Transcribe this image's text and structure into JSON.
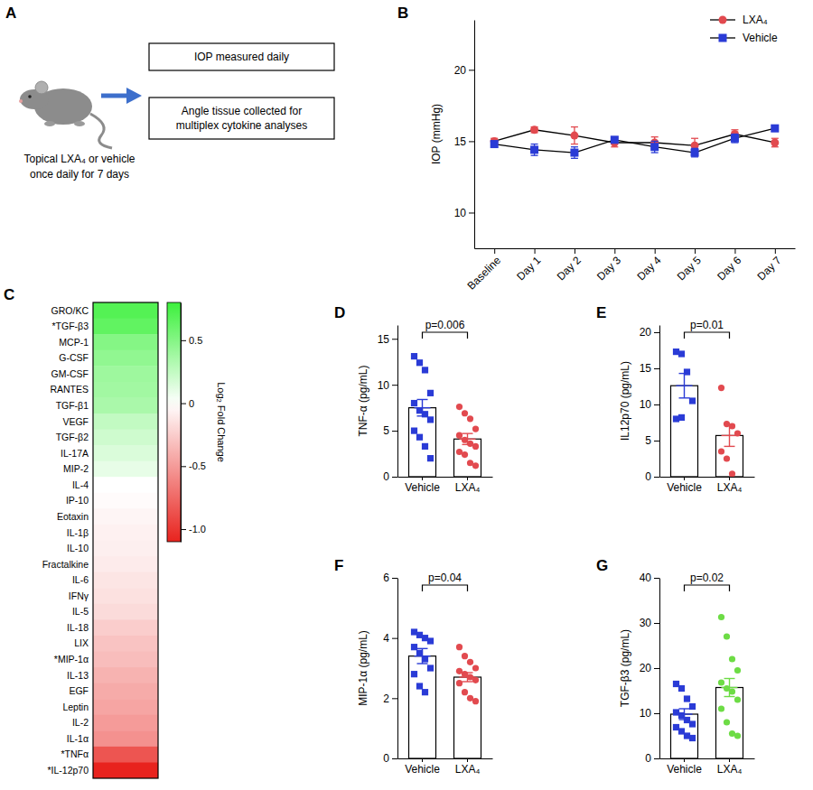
{
  "diagram": {
    "label": "A",
    "caption": [
      "Topical LXA₄ or vehicle",
      "once daily for 7 days"
    ],
    "boxes": [
      [
        "IOP measured daily"
      ],
      [
        "Angle tissue collected for",
        "multiplex cytokine analyses"
      ]
    ]
  },
  "chart_data": [
    {
      "label": "B",
      "type": "line",
      "y_label": "IOP (mmHg)",
      "categories": [
        "Baseline",
        "Day 1",
        "Day 2",
        "Day 3",
        "Day 4",
        "Day 5",
        "Day 6",
        "Day 7"
      ],
      "ylim": [
        7.5,
        23.5
      ],
      "yticks": [
        10,
        15,
        20
      ],
      "legend": "top-right",
      "series": [
        {
          "name": "LXA₄",
          "color": "#e24a4f",
          "marker": "circle",
          "values": [
            15.0,
            15.8,
            15.4,
            14.9,
            14.9,
            14.7,
            15.5,
            14.9
          ],
          "errors": [
            0.2,
            0.2,
            0.6,
            0.3,
            0.4,
            0.5,
            0.3,
            0.3
          ]
        },
        {
          "name": "Vehicle",
          "color": "#2a3bd6",
          "marker": "square",
          "values": [
            14.8,
            14.4,
            14.2,
            15.1,
            14.6,
            14.2,
            15.2,
            15.9
          ],
          "errors": [
            0.2,
            0.4,
            0.4,
            0.2,
            0.4,
            0.3,
            0.3,
            0.2
          ]
        }
      ]
    },
    {
      "label": "C",
      "type": "heatmap",
      "color_label": "Log₂ Fold Change",
      "categories": [
        "GRO/KC",
        "*TGF-β3",
        "MCP-1",
        "G-CSF",
        "GM-CSF",
        "RANTES",
        "TGF-β1",
        "VEGF",
        "TGF-β2",
        "IL-17A",
        "MIP-2",
        "IL-4",
        "IP-10",
        "Eotaxin",
        "IL-1β",
        "IL-10",
        "Fractalkine",
        "IL-6",
        "IFNγ",
        "IL-5",
        "IL-18",
        "LIX",
        "*MIP-1α",
        "IL-13",
        "EGF",
        "Leptin",
        "IL-2",
        "IL-1α",
        "*TNFα",
        "*IL-12p70"
      ],
      "values": [
        0.7,
        0.65,
        0.5,
        0.45,
        0.4,
        0.38,
        0.35,
        0.25,
        0.2,
        0.15,
        0.1,
        0.0,
        -0.02,
        -0.05,
        -0.07,
        -0.08,
        -0.1,
        -0.13,
        -0.15,
        -0.18,
        -0.25,
        -0.3,
        -0.33,
        -0.38,
        -0.42,
        -0.45,
        -0.5,
        -0.55,
        -0.85,
        -1.1
      ],
      "color_range": [
        -1.1,
        0.8
      ],
      "color_ticks": [
        0.5,
        0,
        -0.5,
        {
          "value": -1,
          "label": "-1.0"
        }
      ]
    },
    {
      "label": "D",
      "type": "bar",
      "y_label": "TNF-α (pg/mL)",
      "ylim": [
        0,
        16.5
      ],
      "yticks": [
        0,
        5,
        10,
        15
      ],
      "annotation": "p=0.006",
      "series": [
        {
          "name": "Vehicle",
          "color": "#2a3bd6",
          "marker": "square",
          "values": [
            7.5
          ],
          "errors": [
            0.9
          ],
          "points": [
            13.1,
            12.4,
            11.6,
            9.1,
            8.0,
            7.2,
            6.8,
            6.2,
            5.0,
            4.3,
            3.3,
            2.0
          ]
        },
        {
          "name": "LXA₄",
          "color": "#e24a4f",
          "marker": "circle",
          "values": [
            4.1
          ],
          "errors": [
            0.6
          ],
          "points": [
            7.6,
            6.9,
            6.3,
            5.2,
            4.5,
            4.0,
            3.6,
            3.3,
            2.7,
            2.4,
            1.5,
            1.2
          ]
        }
      ]
    },
    {
      "label": "E",
      "type": "bar",
      "y_label": "IL12p70 (pg/mL)",
      "ylim": [
        0,
        21
      ],
      "yticks": [
        0,
        5,
        10,
        15,
        20
      ],
      "annotation": "p=0.01",
      "series": [
        {
          "name": "Vehicle",
          "color": "#2a3bd6",
          "marker": "square",
          "values": [
            12.6
          ],
          "errors": [
            1.7
          ],
          "points": [
            17.3,
            17.0,
            14.5,
            10.5,
            8.0,
            8.2
          ]
        },
        {
          "name": "LXA₄",
          "color": "#e24a4f",
          "marker": "circle",
          "values": [
            5.7
          ],
          "errors": [
            1.5
          ],
          "points": [
            12.3,
            7.3,
            7.0,
            6.0,
            3.5,
            2.5,
            0.4
          ]
        }
      ]
    },
    {
      "label": "F",
      "type": "bar",
      "y_label": "MIP-1α (pg/mL)",
      "ylim": [
        0,
        6
      ],
      "yticks": [
        0,
        2,
        4,
        6
      ],
      "annotation": "p=0.04",
      "series": [
        {
          "name": "Vehicle",
          "color": "#2a3bd6",
          "marker": "square",
          "values": [
            3.4
          ],
          "errors": [
            0.25
          ],
          "points": [
            4.2,
            4.1,
            4.0,
            3.9,
            3.7,
            3.5,
            3.3,
            3.0,
            2.8,
            2.4,
            2.2
          ]
        },
        {
          "name": "LXA₄",
          "color": "#e24a4f",
          "marker": "circle",
          "values": [
            2.7
          ],
          "errors": [
            0.15
          ],
          "points": [
            3.7,
            3.4,
            3.2,
            3.0,
            2.9,
            2.8,
            2.7,
            2.6,
            2.5,
            2.2,
            2.0,
            1.9
          ]
        }
      ]
    },
    {
      "label": "G",
      "type": "bar",
      "y_label": "TGF-β3 (pg/mL)",
      "ylim": [
        0,
        40
      ],
      "yticks": [
        0,
        10,
        20,
        30,
        40
      ],
      "annotation": "p=0.02",
      "series": [
        {
          "name": "Vehicle",
          "color": "#2a3bd6",
          "marker": "square",
          "values": [
            9.8
          ],
          "errors": [
            1.2
          ],
          "points": [
            16.5,
            15.5,
            13.2,
            11.5,
            10.2,
            9.5,
            8.5,
            7.6,
            6.9,
            6.0,
            5.0,
            4.5
          ]
        },
        {
          "name": "LXA₄",
          "color": "#6ddc45",
          "marker": "circle",
          "values": [
            15.7
          ],
          "errors": [
            2.0
          ],
          "points": [
            31.3,
            27.0,
            22.0,
            19.5,
            16.8,
            15.5,
            14.8,
            13.0,
            11.0,
            8.0,
            5.5,
            5.0
          ]
        }
      ]
    }
  ]
}
